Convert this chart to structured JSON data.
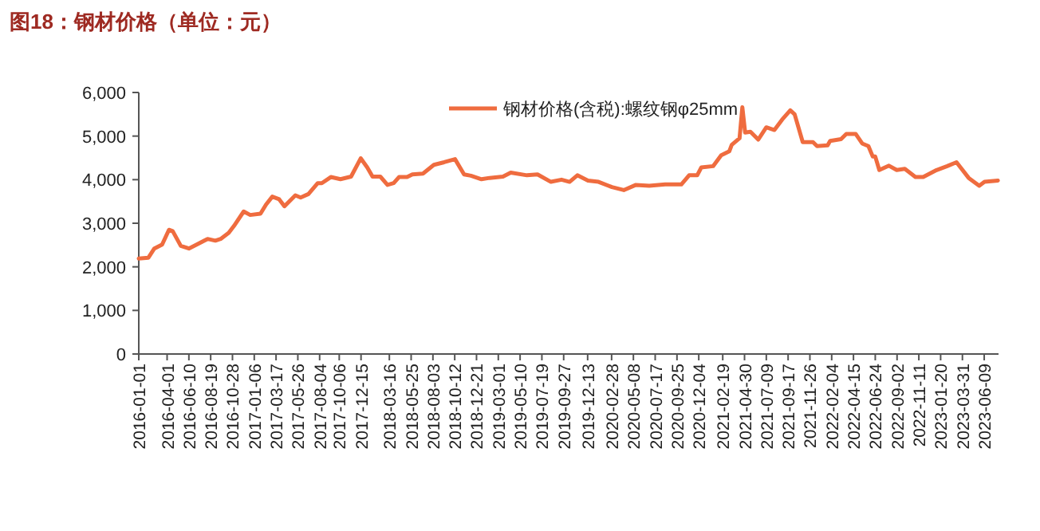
{
  "chart_data": {
    "type": "line",
    "title": "图18：钢材价格（单位：元）",
    "legend": "top",
    "ylim": [
      0,
      6000
    ],
    "yticks": [
      0,
      {
        "value": 1000,
        "label": "1,000"
      },
      {
        "value": 2000,
        "label": "2,000"
      },
      {
        "value": 3000,
        "label": "3,000"
      },
      {
        "value": 4000,
        "label": "4,000"
      },
      {
        "value": 5000,
        "label": "5,000"
      },
      {
        "value": 6000,
        "label": "6,000"
      }
    ],
    "xlim": [
      "2016-01-01",
      "2023-07-25"
    ],
    "xticks": [
      "2016-01-01",
      "2016-04-01",
      "2016-06-10",
      "2016-08-19",
      "2016-10-28",
      "2017-01-06",
      "2017-03-17",
      "2017-05-26",
      "2017-08-04",
      "2017-10-06",
      "2017-12-15",
      "2018-03-16",
      "2018-05-25",
      "2018-08-03",
      "2018-10-12",
      "2018-12-21",
      "2019-03-01",
      "2019-05-10",
      "2019-07-19",
      "2019-09-27",
      "2019-12-13",
      "2020-02-28",
      "2020-05-08",
      "2020-07-17",
      "2020-09-25",
      "2020-12-04",
      "2021-02-19",
      "2021-04-30",
      "2021-07-09",
      "2021-09-17",
      "2021-11-26",
      "2022-02-04",
      "2022-04-15",
      "2022-06-24",
      "2022-09-02",
      "2022-11-11",
      "2023-01-20",
      "2023-03-31",
      "2023-06-09"
    ],
    "x": [
      "2016-01-01",
      "2016-02-01",
      "2016-02-20",
      "2016-03-16",
      "2016-04-07",
      "2016-04-19",
      "2016-05-15",
      "2016-06-10",
      "2016-07-05",
      "2016-08-09",
      "2016-09-03",
      "2016-09-20",
      "2016-10-16",
      "2016-11-02",
      "2016-12-03",
      "2016-12-24",
      "2017-01-26",
      "2017-02-13",
      "2017-03-05",
      "2017-03-27",
      "2017-04-13",
      "2017-05-18",
      "2017-06-04",
      "2017-06-29",
      "2017-07-29",
      "2017-08-11",
      "2017-09-09",
      "2017-10-10",
      "2017-11-13",
      "2017-12-14",
      "2018-01-04",
      "2018-01-21",
      "2018-02-15",
      "2018-03-10",
      "2018-03-30",
      "2018-04-16",
      "2018-05-12",
      "2018-05-29",
      "2018-07-02",
      "2018-08-06",
      "2018-09-08",
      "2018-10-13",
      "2018-11-11",
      "2018-12-03",
      "2019-01-06",
      "2019-02-01",
      "2019-03-16",
      "2019-04-10",
      "2019-06-01",
      "2019-07-05",
      "2019-08-17",
      "2019-09-20",
      "2019-10-16",
      "2019-11-10",
      "2019-12-14",
      "2020-01-17",
      "2020-02-29",
      "2020-04-07",
      "2020-05-16",
      "2020-06-28",
      "2020-08-18",
      "2020-10-09",
      "2020-11-03",
      "2020-11-29",
      "2020-12-12",
      "2021-01-19",
      "2021-02-14",
      "2021-03-12",
      "2021-03-20",
      "2021-04-14",
      "2021-04-23",
      "2021-05-02",
      "2021-05-19",
      "2021-06-13",
      "2021-07-09",
      "2021-08-04",
      "2021-08-29",
      "2021-09-24",
      "2021-10-08",
      "2021-11-03",
      "2021-12-06",
      "2021-12-19",
      "2022-01-22",
      "2022-01-30",
      "2022-03-06",
      "2022-03-23",
      "2022-04-22",
      "2022-05-13",
      "2022-06-02",
      "2022-06-16",
      "2022-06-24",
      "2022-07-07",
      "2022-08-07",
      "2022-09-01",
      "2022-09-27",
      "2022-10-31",
      "2022-11-25",
      "2023-01-07",
      "2023-02-10",
      "2023-03-12",
      "2023-04-20",
      "2023-05-24",
      "2023-06-10",
      "2023-07-23"
    ],
    "series": [
      {
        "name": "钢材价格(含税):螺纹钢φ25mm",
        "color": "#ef6c3f",
        "values": [
          2190,
          2210,
          2420,
          2510,
          2850,
          2820,
          2480,
          2420,
          2510,
          2640,
          2600,
          2640,
          2780,
          2940,
          3270,
          3190,
          3220,
          3430,
          3610,
          3550,
          3390,
          3640,
          3590,
          3670,
          3920,
          3920,
          4060,
          4010,
          4070,
          4490,
          4280,
          4070,
          4070,
          3880,
          3920,
          4060,
          4060,
          4120,
          4140,
          4340,
          4400,
          4470,
          4120,
          4090,
          4010,
          4040,
          4070,
          4160,
          4100,
          4120,
          3950,
          4000,
          3950,
          4100,
          3980,
          3950,
          3830,
          3760,
          3880,
          3860,
          3890,
          3890,
          4100,
          4100,
          4280,
          4310,
          4560,
          4650,
          4800,
          4950,
          5660,
          5080,
          5100,
          4920,
          5200,
          5140,
          5380,
          5590,
          5500,
          4860,
          4860,
          4770,
          4790,
          4890,
          4930,
          5050,
          5050,
          4830,
          4770,
          4530,
          4530,
          4220,
          4320,
          4220,
          4250,
          4060,
          4060,
          4220,
          4310,
          4400,
          4040,
          3860,
          3950,
          3980
        ]
      }
    ]
  }
}
